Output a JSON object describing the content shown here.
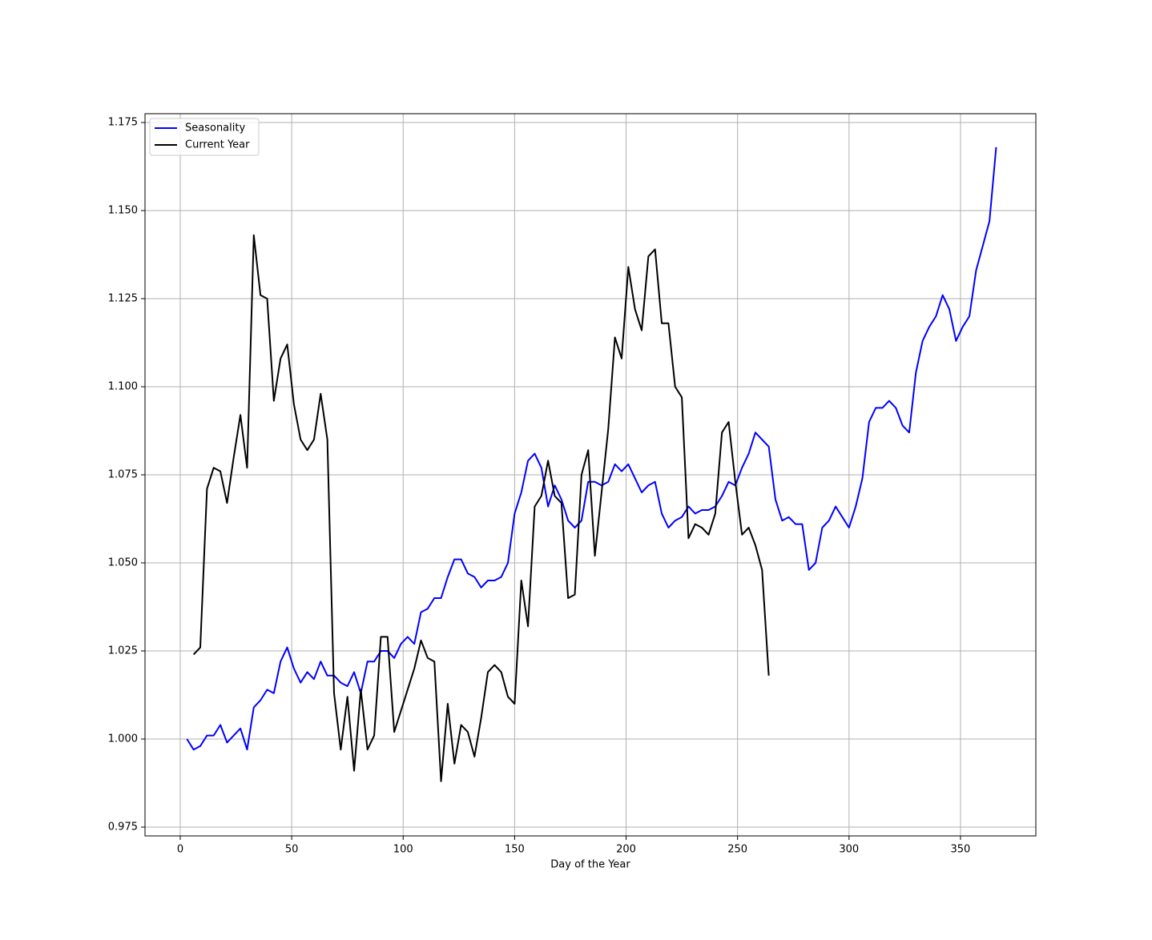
{
  "chart_data": {
    "type": "line",
    "xlabel": "Day of the Year",
    "x": [
      3,
      6,
      9,
      12,
      15,
      18,
      21,
      24,
      27,
      30,
      33,
      36,
      39,
      42,
      45,
      48,
      51,
      54,
      57,
      60,
      63,
      66,
      69,
      72,
      75,
      78,
      81,
      84,
      87,
      90,
      93,
      96,
      99,
      102,
      105,
      108,
      111,
      114,
      117,
      120,
      123,
      126,
      129,
      132,
      135,
      138,
      141,
      144,
      147,
      150,
      153,
      156,
      159,
      162,
      165,
      168,
      171,
      174,
      177,
      180,
      183,
      186,
      189,
      192,
      195,
      198,
      201,
      204,
      207,
      210,
      213,
      216,
      219,
      222,
      225,
      228,
      231,
      234,
      237,
      240,
      243,
      246,
      249,
      252,
      255,
      258,
      261,
      264,
      267,
      270,
      273,
      276,
      279,
      282,
      285,
      288,
      291,
      294,
      297,
      300,
      303,
      306,
      309,
      312,
      315,
      318,
      321,
      324,
      327,
      330,
      333,
      336,
      339,
      342,
      345,
      348,
      351,
      354,
      357,
      360,
      363,
      366
    ],
    "series": [
      {
        "name": "Seasonality",
        "color": "#0000ff",
        "values": [
          1.0,
          0.997,
          0.998,
          1.001,
          1.001,
          1.004,
          0.999,
          1.001,
          1.003,
          0.997,
          1.009,
          1.011,
          1.014,
          1.013,
          1.022,
          1.026,
          1.02,
          1.016,
          1.019,
          1.017,
          1.022,
          1.018,
          1.018,
          1.016,
          1.015,
          1.019,
          1.013,
          1.022,
          1.022,
          1.025,
          1.025,
          1.023,
          1.027,
          1.029,
          1.027,
          1.036,
          1.037,
          1.04,
          1.04,
          1.046,
          1.051,
          1.051,
          1.047,
          1.046,
          1.043,
          1.045,
          1.045,
          1.046,
          1.05,
          1.064,
          1.07,
          1.079,
          1.081,
          1.077,
          1.066,
          1.072,
          1.068,
          1.062,
          1.06,
          1.062,
          1.073,
          1.073,
          1.072,
          1.073,
          1.078,
          1.076,
          1.078,
          1.074,
          1.07,
          1.072,
          1.073,
          1.064,
          1.06,
          1.062,
          1.063,
          1.066,
          1.064,
          1.065,
          1.065,
          1.066,
          1.069,
          1.073,
          1.072,
          1.077,
          1.081,
          1.087,
          1.085,
          1.083,
          1.068,
          1.062,
          1.063,
          1.061,
          1.061,
          1.048,
          1.05,
          1.06,
          1.062,
          1.066,
          1.063,
          1.06,
          1.066,
          1.074,
          1.09,
          1.094,
          1.094,
          1.096,
          1.094,
          1.089,
          1.087,
          1.104,
          1.113,
          1.117,
          1.12,
          1.126,
          1.122,
          1.113,
          1.117,
          1.12,
          1.133,
          1.14,
          1.147,
          1.168
        ]
      },
      {
        "name": "Current Year",
        "color": "#000000",
        "values": [
          null,
          1.024,
          1.026,
          1.071,
          1.077,
          1.076,
          1.067,
          1.08,
          1.092,
          1.077,
          1.143,
          1.126,
          1.125,
          1.096,
          1.108,
          1.112,
          1.095,
          1.085,
          1.082,
          1.085,
          1.098,
          1.085,
          1.013,
          0.997,
          1.012,
          0.991,
          1.014,
          0.997,
          1.001,
          1.029,
          1.029,
          1.002,
          1.008,
          1.014,
          1.02,
          1.028,
          1.023,
          1.022,
          0.988,
          1.01,
          0.993,
          1.004,
          1.002,
          0.995,
          1.006,
          1.019,
          1.021,
          1.019,
          1.012,
          1.01,
          1.045,
          1.032,
          1.066,
          1.069,
          1.079,
          1.069,
          1.067,
          1.04,
          1.041,
          1.075,
          1.082,
          1.052,
          1.07,
          1.088,
          1.114,
          1.108,
          1.134,
          1.122,
          1.116,
          1.137,
          1.139,
          1.118,
          1.118,
          1.1,
          1.097,
          1.057,
          1.061,
          1.06,
          1.058,
          1.064,
          1.087,
          1.09,
          1.073,
          1.058,
          1.06,
          1.055,
          1.048,
          1.018,
          null,
          null,
          null,
          null,
          null,
          null,
          null,
          null,
          null,
          null,
          null,
          null,
          null,
          null,
          null,
          null,
          null,
          null,
          null,
          null,
          null,
          null,
          null,
          null,
          null,
          null,
          null,
          null,
          null,
          null,
          null,
          null,
          null,
          null
        ]
      }
    ],
    "xlim": [
      -15.8,
      383.8
    ],
    "ylim": [
      0.9725,
      1.1775
    ],
    "xticks": [
      0,
      50,
      100,
      150,
      200,
      250,
      300,
      350
    ],
    "yticks": [
      0.975,
      {
        "value": 1.0,
        "label": "1.000"
      },
      1.025,
      {
        "value": 1.05,
        "label": "1.050"
      },
      1.075,
      {
        "value": 1.1,
        "label": "1.100"
      },
      1.125,
      {
        "value": 1.15,
        "label": "1.150"
      },
      1.175
    ],
    "grid": true,
    "legend": "upper left"
  }
}
